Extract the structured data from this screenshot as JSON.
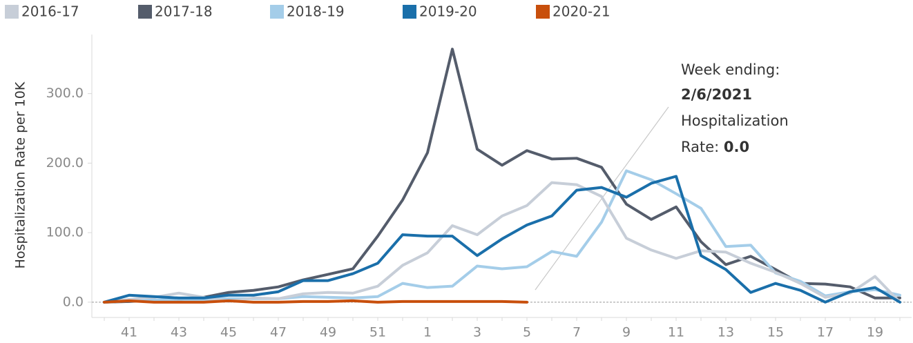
{
  "chart_data": {
    "type": "line",
    "y_label": "Hospitalization Rate per 10K",
    "categories": [
      null,
      "41",
      null,
      "43",
      null,
      "45",
      null,
      "47",
      null,
      "49",
      null,
      "51",
      null,
      "1",
      null,
      "3",
      null,
      "5",
      null,
      "7",
      null,
      "9",
      null,
      "11",
      null,
      "13",
      null,
      "15",
      null,
      "17",
      null,
      "19",
      null
    ],
    "ylim": [
      -22,
      385
    ],
    "yticks": [
      {
        "value": 0,
        "label": "0.0"
      },
      {
        "value": 100,
        "label": "100.0"
      },
      {
        "value": 200,
        "label": "200.0"
      },
      {
        "value": 300,
        "label": "300.0"
      }
    ],
    "zero_line": true,
    "series": [
      {
        "name": "2016-17",
        "color": "#c7ced8",
        "values": [
          0,
          4,
          7,
          13,
          7,
          1,
          6,
          5,
          12,
          14,
          13,
          23,
          53,
          71,
          110,
          97,
          124,
          139,
          172,
          169,
          152,
          92,
          75,
          63,
          74,
          72,
          56,
          43,
          27,
          7,
          13,
          37,
          0
        ]
      },
      {
        "name": "2017-18",
        "color": "#545c6b",
        "values": [
          0,
          1,
          3,
          2,
          7,
          14,
          17,
          22,
          32,
          40,
          48,
          95,
          147,
          215,
          364,
          220,
          197,
          218,
          206,
          207,
          194,
          141,
          119,
          137,
          87,
          54,
          66,
          47,
          27,
          26,
          22,
          6,
          6
        ]
      },
      {
        "name": "2018-19",
        "color": "#a4cde9",
        "values": [
          0,
          2,
          3,
          4,
          3,
          5,
          5,
          5,
          8,
          7,
          6,
          8,
          27,
          21,
          23,
          52,
          48,
          51,
          73,
          66,
          115,
          189,
          176,
          156,
          135,
          80,
          82,
          42,
          30,
          9,
          15,
          18,
          10
        ]
      },
      {
        "name": "2019-20",
        "color": "#1a6faa",
        "values": [
          0,
          10,
          8,
          6,
          6,
          10,
          10,
          15,
          31,
          31,
          41,
          56,
          97,
          95,
          95,
          67,
          91,
          111,
          124,
          161,
          165,
          151,
          171,
          181,
          67,
          47,
          14,
          27,
          17,
          0,
          15,
          21,
          0
        ]
      },
      {
        "name": "2020-21",
        "color": "#c84f0c",
        "values": [
          0,
          2,
          0,
          0,
          0,
          2,
          0,
          0,
          1,
          1,
          2,
          0,
          1,
          1,
          1,
          1,
          1,
          0,
          null,
          null,
          null,
          null,
          null,
          null,
          null,
          null,
          null,
          null,
          null,
          null,
          null,
          null,
          null
        ]
      }
    ],
    "annotation": {
      "line1": "Week ending:",
      "date": "2/6/2021",
      "line3": "Hospitalization",
      "line4": "Rate:",
      "value": "0.0"
    }
  }
}
